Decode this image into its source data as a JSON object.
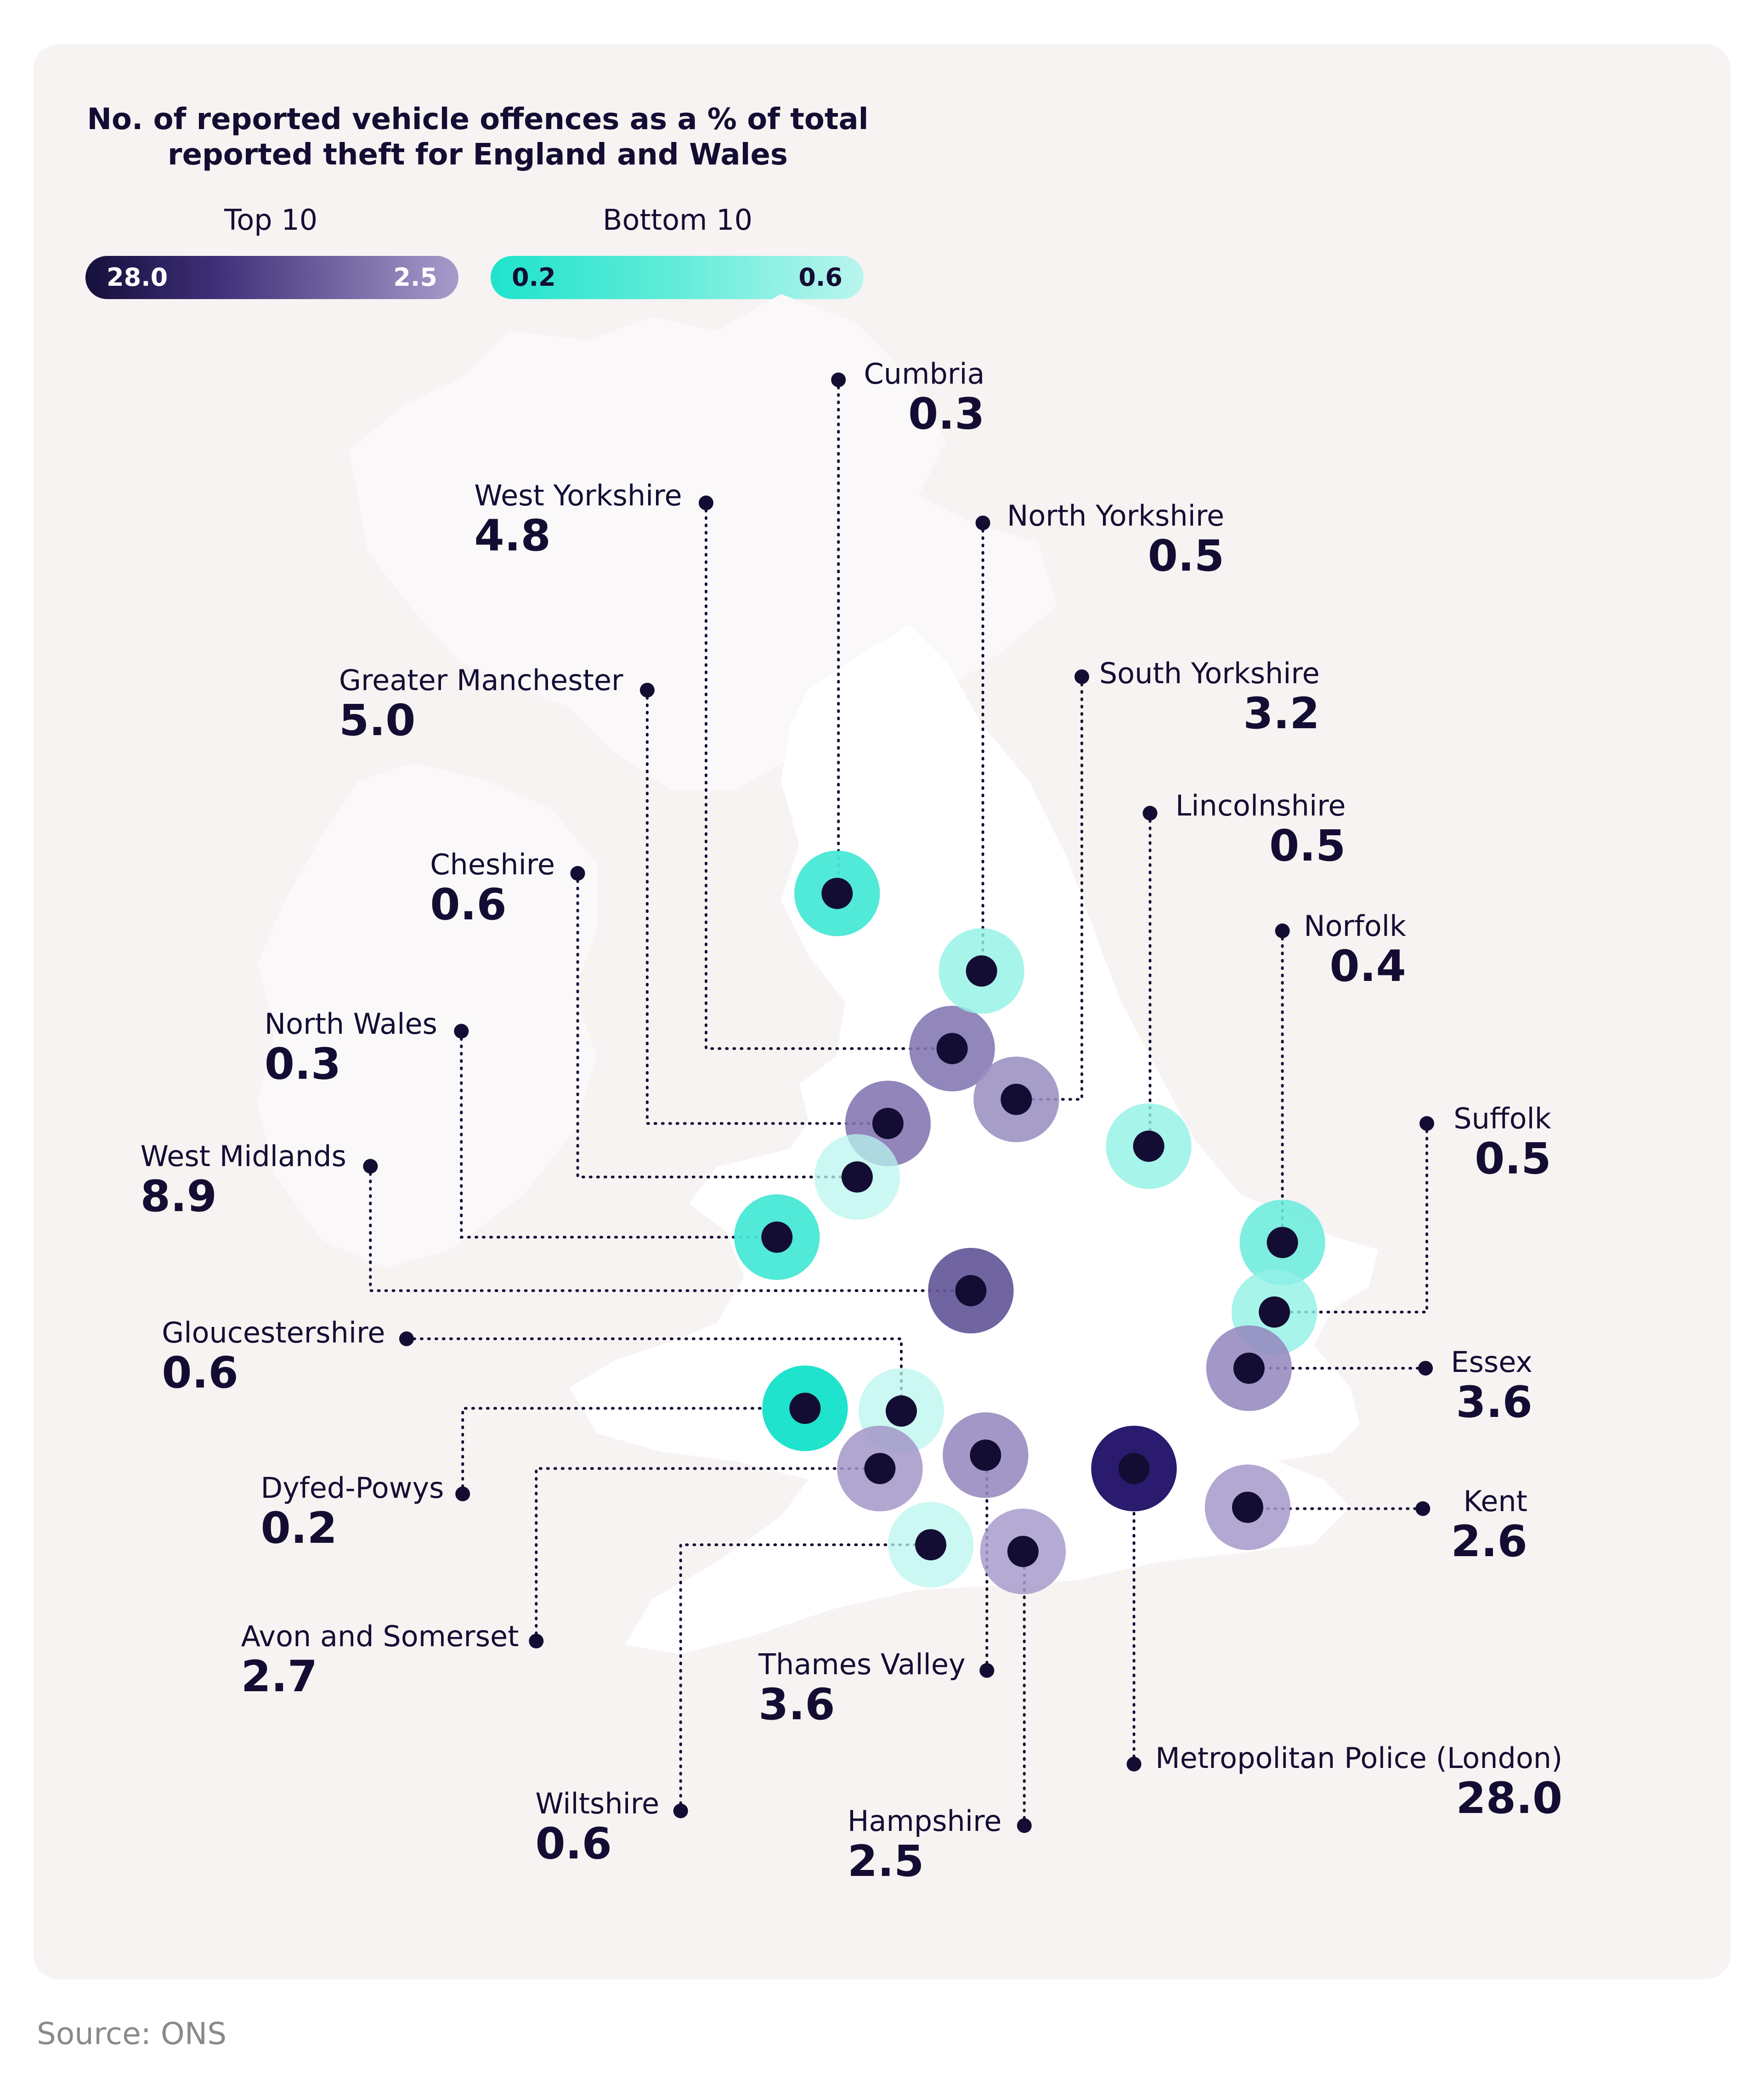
{
  "title": "No. of reported vehicle offences as a % of total reported theft for England and Wales",
  "legend": {
    "top": {
      "heading": "Top 10",
      "low": "28.0",
      "high": "2.5"
    },
    "bottom": {
      "heading": "Bottom 10",
      "low": "0.2",
      "high": "0.6"
    }
  },
  "source": "Source: ONS",
  "colors": {
    "background": "#f6f3f2",
    "land": "#ffffff",
    "ink": "#140d33",
    "top_dark": "#2a1b6e",
    "top_light": "#a79bcb",
    "bottom_teal": "#1fe3cc",
    "bottom_light": "#b9f5ee"
  },
  "regions": [
    {
      "name": "Cumbria",
      "value": "0.3"
    },
    {
      "name": "West Yorkshire",
      "value": "4.8"
    },
    {
      "name": "North Yorkshire",
      "value": "0.5"
    },
    {
      "name": "Greater Manchester",
      "value": "5.0"
    },
    {
      "name": "South Yorkshire",
      "value": "3.2"
    },
    {
      "name": "Lincolnshire",
      "value": "0.5"
    },
    {
      "name": "Cheshire",
      "value": "0.6"
    },
    {
      "name": "Norfolk",
      "value": "0.4"
    },
    {
      "name": "North Wales",
      "value": "0.3"
    },
    {
      "name": "Suffolk",
      "value": "0.5"
    },
    {
      "name": "West Midlands",
      "value": "8.9"
    },
    {
      "name": "Gloucestershire",
      "value": "0.6"
    },
    {
      "name": "Essex",
      "value": "3.6"
    },
    {
      "name": "Dyfed-Powys",
      "value": "0.2"
    },
    {
      "name": "Kent",
      "value": "2.6"
    },
    {
      "name": "Avon and Somerset",
      "value": "2.7"
    },
    {
      "name": "Thames Valley",
      "value": "3.6"
    },
    {
      "name": "Metropolitan Police (London)",
      "value": "28.0"
    },
    {
      "name": "Wiltshire",
      "value": "0.6"
    },
    {
      "name": "Hampshire",
      "value": "2.5"
    }
  ]
}
